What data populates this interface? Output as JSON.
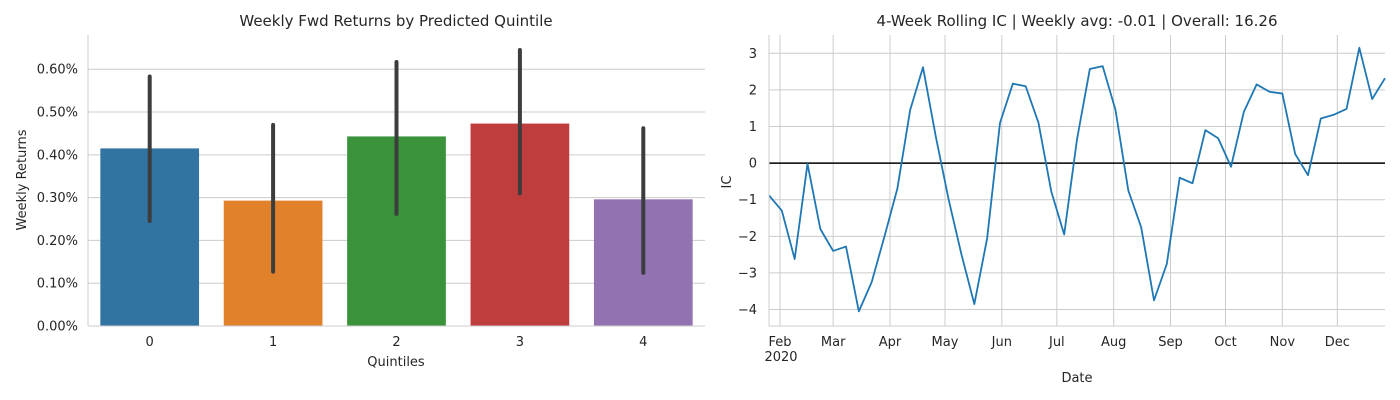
{
  "chart_data": [
    {
      "type": "bar",
      "title": "Weekly Fwd Returns by Predicted Quintile",
      "xlabel": "Quintiles",
      "ylabel": "Weekly Returns",
      "categories": [
        "0",
        "1",
        "2",
        "3",
        "4"
      ],
      "values": [
        0.00415,
        0.00293,
        0.00443,
        0.00473,
        0.00296
      ],
      "ci_low": [
        0.00245,
        0.00127,
        0.00262,
        0.0031,
        0.00124
      ],
      "ci_high": [
        0.00583,
        0.0047,
        0.00617,
        0.00645,
        0.00462
      ],
      "colors": [
        "#3274a1",
        "#e1812c",
        "#3a923a",
        "#c03d3e",
        "#9372b2"
      ],
      "error_bar_color": "#3d3d3d",
      "ylim": [
        0,
        0.0068
      ],
      "yticks": [
        0,
        0.001,
        0.002,
        0.003,
        0.004,
        0.005,
        0.006
      ],
      "ytick_labels": [
        "0.00%",
        "0.10%",
        "0.20%",
        "0.30%",
        "0.40%",
        "0.50%",
        "0.60%"
      ],
      "grid": "horizontal"
    },
    {
      "type": "line",
      "title": "4-Week Rolling IC | Weekly avg: -0.01 | Overall: 16.26",
      "xlabel": "Date",
      "ylabel": "IC",
      "x": [
        "2020-01-26",
        "2020-02-02",
        "2020-02-09",
        "2020-02-16",
        "2020-02-23",
        "2020-03-01",
        "2020-03-08",
        "2020-03-15",
        "2020-03-22",
        "2020-03-29",
        "2020-04-05",
        "2020-04-12",
        "2020-04-19",
        "2020-04-26",
        "2020-05-03",
        "2020-05-10",
        "2020-05-17",
        "2020-05-24",
        "2020-05-31",
        "2020-06-07",
        "2020-06-14",
        "2020-06-21",
        "2020-06-28",
        "2020-07-05",
        "2020-07-12",
        "2020-07-19",
        "2020-07-26",
        "2020-08-02",
        "2020-08-09",
        "2020-08-16",
        "2020-08-23",
        "2020-08-30",
        "2020-09-06",
        "2020-09-13",
        "2020-09-20",
        "2020-09-27",
        "2020-10-04",
        "2020-10-11",
        "2020-10-18",
        "2020-10-25",
        "2020-11-01",
        "2020-11-08",
        "2020-11-15",
        "2020-11-22",
        "2020-11-29",
        "2020-12-06",
        "2020-12-13",
        "2020-12-20",
        "2020-12-27"
      ],
      "series": [
        {
          "values": [
            -0.88,
            -1.3,
            -2.62,
            -0.02,
            -1.8,
            -2.4,
            -2.28,
            -4.05,
            -3.25,
            -2.0,
            -0.7,
            1.45,
            2.62,
            0.72,
            -1.0,
            -2.5,
            -3.85,
            -2.05,
            1.1,
            2.17,
            2.1,
            1.1,
            -0.78,
            -1.95,
            0.65,
            2.57,
            2.65,
            1.45,
            -0.75,
            -1.75,
            -3.75,
            -2.75,
            -0.4,
            -0.55,
            0.9,
            0.68,
            -0.1,
            1.4,
            2.15,
            1.95,
            1.9,
            0.25,
            -0.33,
            1.22,
            1.32,
            1.48,
            3.15,
            1.75,
            2.32
          ],
          "color": "#1f77b4"
        }
      ],
      "hline": {
        "y": 0,
        "color": "#000000"
      },
      "ylim": [
        -4.45,
        3.5
      ],
      "yticks": [
        -4,
        -3,
        -2,
        -1,
        0,
        1,
        2,
        3
      ],
      "ytick_labels": [
        "−4",
        "−3",
        "−2",
        "−1",
        "0",
        "1",
        "2",
        "3"
      ],
      "xlim": [
        "2020-01-26",
        "2020-12-27"
      ],
      "xticks": [
        "2020-02-01",
        "2020-03-01",
        "2020-04-01",
        "2020-05-01",
        "2020-06-01",
        "2020-07-01",
        "2020-08-01",
        "2020-09-01",
        "2020-10-01",
        "2020-11-01",
        "2020-12-01"
      ],
      "xtick_labels": [
        "Feb",
        "Mar",
        "Apr",
        "May",
        "Jun",
        "Jul",
        "Aug",
        "Sep",
        "Oct",
        "Nov",
        "Dec"
      ],
      "year_label": "2020",
      "grid": "both"
    }
  ]
}
